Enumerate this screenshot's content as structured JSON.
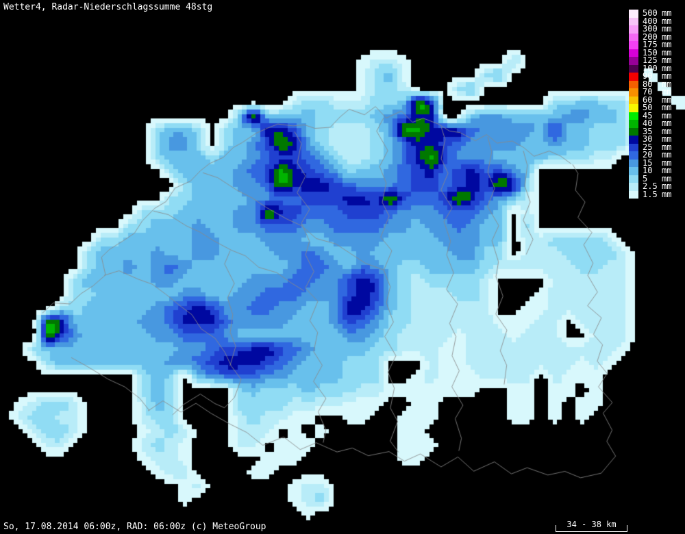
{
  "title": "Wetter4, Radar-Niederschlagssumme 48stg",
  "footer": {
    "left": "So, 17.08.2014 06:00z, RAD: 06:00z (c) MeteoGroup",
    "scale_label": "34 - 38 km"
  },
  "legend": {
    "unit": "mm",
    "entries": [
      {
        "value": "500",
        "color": "#feeefe"
      },
      {
        "value": "400",
        "color": "#f8c4f8"
      },
      {
        "value": "300",
        "color": "#f89cf8"
      },
      {
        "value": "200",
        "color": "#f468f4"
      },
      {
        "value": "175",
        "color": "#f440f4"
      },
      {
        "value": "150",
        "color": "#d800d8"
      },
      {
        "value": "125",
        "color": "#980098"
      },
      {
        "value": "100",
        "color": "#500050"
      },
      {
        "value": "90",
        "color": "#f40000"
      },
      {
        "value": "80",
        "color": "#f46000"
      },
      {
        "value": "70",
        "color": "#f89000"
      },
      {
        "value": "60",
        "color": "#f8c400"
      },
      {
        "value": "50",
        "color": "#f8f800"
      },
      {
        "value": "45",
        "color": "#00ec00"
      },
      {
        "value": "40",
        "color": "#00b400"
      },
      {
        "value": "35",
        "color": "#007800"
      },
      {
        "value": "30",
        "color": "#0008a0"
      },
      {
        "value": "25",
        "color": "#2040d0"
      },
      {
        "value": "20",
        "color": "#3068e0"
      },
      {
        "value": "15",
        "color": "#4898e0"
      },
      {
        "value": "10",
        "color": "#68c0ec"
      },
      {
        "value": "5",
        "color": "#90dcf4"
      },
      {
        "value": "2.5",
        "color": "#b8ecf8"
      },
      {
        "value": "1.5",
        "color": "#d8f8fc"
      }
    ]
  },
  "map": {
    "background": "#000000",
    "border_color": "#8a8a8a",
    "palette_chars": ".12345678dgb",
    "palette": [
      "#000000",
      "#d8f8fc",
      "#b8ecf8",
      "#90dcf4",
      "#68c0ec",
      "#4898e0",
      "#3068e0",
      "#2040d0",
      "#0008a0",
      "#007800",
      "#00b400",
      "#00ec00"
    ],
    "grid": [
      [],
      [],
      [],
      [],
      [
        "..........................",
        "1221",
        ".......",
        "3"
      ],
      [
        "..........................",
        "1341",
        ".....",
        "34",
        "..........",
        "1"
      ],
      [
        "..........................",
        "1332",
        "...",
        "34",
        ".............",
        "1"
      ],
      [
        ".....................",
        "233222334g8",
        "........",
        "334433",
        "...",
        "1"
      ],
      [
        ".................",
        "4g4444333345688",
        "..",
        "455444455443"
      ],
      [
        "...........",
        "3443",
        ".",
        "3448874322",
        "235gg88865",
        "5554744333"
      ],
      [
        "...........",
        "3553",
        ".",
        "3457g85322",
        "2346887655",
        "5544544333"
      ],
      [
        "...........",
        "3444344567",
        "7653223468",
        "g755544443",
        "3322"
      ],
      [
        "............",
        "34444567g8",
        "7653445678",
        "6786754"
      ],
      [
        ".............",
        "3444556g88",
        "8765556776",
        "787g83"
      ],
      [
        "............",
        "3344445566",
        "777887g766",
        "7g86542"
      ],
      [
        "..........",
        "333444455g",
        "8766677765",
        "5566654.2"
      ],
      [
        ".........",
        "3344454455",
        "6665566665",
        "54556544.3"
      ],
      [
        ".......",
        "3344444554",
        "4455544555",
        "5444455544",
        ".2233332"
      ],
      [
        "......",
        "3444454455",
        "4444556544",
        "5444444553",
        "3.22233332"
      ],
      [
        "......",
        "3445456544",
        "4444456654",
        "6543344443",
        "2222223322"
      ],
      [
        ".....",
        "3444445544",
        "4445556655",
        "7874323333",
        "2....22222",
        "2"
      ],
      [
        ".....",
        "3344444455",
        "4455666555",
        "7874322233",
        "2...122222",
        "2"
      ],
      [
        "....",
        "3344444567",
        "8755665544",
        "5886432222",
        "22..112222",
        "22"
      ],
      [
        "...",
        "g844444556",
        "8886555544",
        "4576533222",
        "22211122.2",
        "222"
      ],
      [
        "...",
        "g754444455",
        "6665444444",
        "4455432222",
        "12221222..",
        "222"
      ],
      [
        "..",
        "3444444444",
        "4556778876",
        "5444433222",
        "1122222222",
        "2221"
      ],
      [
        "...",
        "3444444445",
        "5678887654",
        "44333...21",
        "1222222221",
        "21"
      ],
      [
        "..........",
        "343.456665",
        "54444333..",
        "121112222.",
        "2111"
      ],
      [
        "..........",
        "343....343",
        "3343332211",
        "11111..11.",
        "11.1"
      ],
      [
        ".",
        "12332",
        "....",
        "243",
        "....",
        "33332222111",
        "..",
        "11",
        ".....",
        "11",
        ".",
        "1",
        ".",
        "11"
      ],
      [
        ".",
        "23322",
        "....",
        "233",
        "....",
        "232211",
        "..",
        "11",
        "..",
        "111",
        ".....",
        "11",
        ".",
        "1.",
        "1"
      ],
      [
        "..",
        "2332",
        "....",
        "1232",
        "...",
        "222",
        ".",
        "1.1",
        ".....",
        "11"
      ],
      [
        "...",
        "22",
        ".....",
        "2321",
        "...",
        "22",
        ".",
        "111",
        "......",
        "111"
      ],
      [
        "..........",
        "1221",
        ".....",
        "111",
        ".......",
        "11"
      ],
      [
        "...........",
        "122",
        "....",
        "11"
      ],
      [
        ".............",
        "12",
        "......",
        "122"
      ],
      [
        ".............",
        "1",
        ".......",
        "123"
      ],
      [
        "......................",
        "1"
      ],
      []
    ],
    "borders": [
      [
        62,
        455,
        80,
        445,
        100,
        442,
        118,
        430,
        138,
        418,
        152,
        400,
        148,
        378,
        162,
        362,
        180,
        352,
        196,
        340,
        210,
        322,
        224,
        306,
        242,
        292,
        258,
        277,
        276,
        263,
        292,
        250,
        308,
        240,
        324,
        228,
        340,
        218,
        356,
        206,
        372,
        196,
        390,
        187,
        408,
        180,
        426,
        186,
        444,
        180
      ],
      [
        444,
        180,
        462,
        190,
        480,
        184,
        496,
        172,
        512,
        160,
        530,
        166,
        548,
        158,
        566,
        170,
        584,
        164,
        602,
        178,
        620,
        172,
        638,
        183,
        656,
        189,
        674,
        196,
        692,
        204,
        710,
        197,
        728,
        210,
        746,
        204,
        764,
        218,
        782,
        226,
        800,
        222,
        818,
        228,
        836,
        238
      ],
      [
        836,
        238,
        846,
        256,
        838,
        276,
        854,
        296,
        846,
        318,
        862,
        338,
        852,
        360,
        868,
        382,
        856,
        404,
        872,
        426,
        860,
        446,
        876,
        466,
        866,
        486,
        882,
        506,
        870,
        526,
        886,
        546,
        876,
        566,
        892,
        586,
        880,
        606,
        896,
        626,
        884,
        646,
        898,
        666
      ],
      [
        216,
        598,
        240,
        588,
        262,
        600,
        286,
        590,
        310,
        604,
        334,
        618,
        360,
        634,
        386,
        648,
        412,
        640,
        438,
        656,
        464,
        646,
        490,
        662,
        514,
        652,
        540,
        668,
        566,
        658,
        590,
        674,
        616,
        664,
        642,
        680,
        668,
        670,
        694,
        686,
        720,
        676,
        746,
        692,
        772,
        682,
        798,
        696,
        824,
        686,
        850,
        700,
        876,
        690,
        898,
        666
      ],
      [
        152,
        400,
        176,
        398,
        200,
        406,
        222,
        416,
        244,
        430,
        262,
        446,
        280,
        462,
        296,
        478,
        312,
        496,
        328,
        514,
        340,
        534,
        350,
        556,
        342,
        578,
        330,
        598,
        312,
        588,
        292,
        576,
        270,
        592,
        250,
        604
      ],
      [
        430,
        190,
        442,
        212,
        432,
        236,
        446,
        258,
        436,
        282,
        450,
        304,
        440,
        328,
        454,
        350,
        444,
        374,
        458,
        396,
        448,
        420,
        462,
        442,
        452,
        466,
        466,
        488,
        456,
        512,
        470,
        534,
        460,
        558,
        474,
        580,
        464,
        604,
        478,
        626,
        470,
        648
      ],
      [
        560,
        170,
        552,
        194,
        564,
        218,
        554,
        244,
        566,
        268,
        556,
        294,
        568,
        318,
        558,
        344,
        570,
        368,
        560,
        394,
        572,
        418,
        562,
        444,
        574,
        468,
        564,
        494,
        576,
        518,
        566,
        544,
        578,
        568,
        568,
        594,
        580,
        618,
        572,
        642,
        580,
        662
      ],
      [
        644,
        183,
        652,
        206,
        642,
        230,
        654,
        254,
        646,
        278,
        658,
        302,
        648,
        326,
        660,
        350,
        650,
        374,
        662,
        398,
        654,
        422,
        666,
        446,
        656,
        470,
        668,
        494,
        658,
        518,
        670,
        542,
        662,
        566,
        674,
        590,
        664,
        614,
        676,
        638,
        668,
        660
      ],
      [
        296,
        250,
        320,
        262,
        344,
        276,
        368,
        290,
        392,
        304,
        416,
        318,
        440,
        332,
        464,
        346,
        488,
        358,
        512,
        370,
        536,
        384,
        558,
        396
      ],
      [
        712,
        198,
        720,
        224,
        710,
        250,
        722,
        276,
        714,
        302,
        726,
        328,
        718,
        354,
        730,
        380,
        722,
        406,
        734,
        432,
        726,
        458,
        738,
        484,
        730,
        510,
        742,
        536,
        734,
        560
      ],
      [
        104,
        520,
        130,
        538,
        156,
        552,
        182,
        566,
        206,
        582,
        216,
        598
      ],
      [
        764,
        218,
        772,
        244,
        764,
        270,
        774,
        296,
        766,
        322,
        776,
        348,
        768,
        374
      ],
      [
        224,
        306,
        248,
        316,
        270,
        328,
        292,
        340,
        314,
        352,
        336,
        364,
        358,
        376,
        380,
        388,
        402,
        400,
        424,
        412,
        446,
        424
      ],
      [
        336,
        364,
        330,
        388,
        340,
        412,
        332,
        436,
        342,
        460,
        334,
        484,
        344,
        508,
        338,
        532
      ]
    ]
  }
}
